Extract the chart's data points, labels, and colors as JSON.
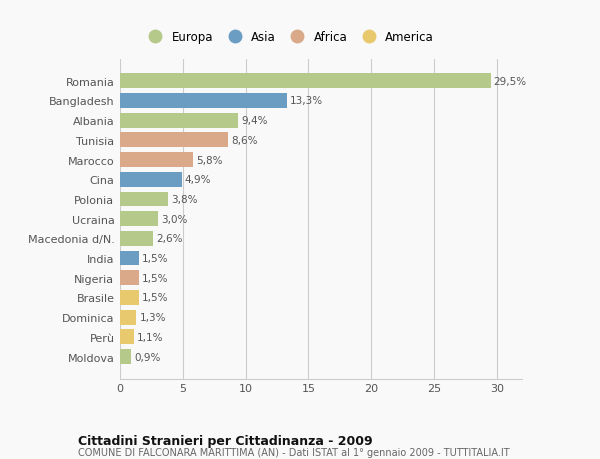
{
  "categories": [
    "Romania",
    "Bangladesh",
    "Albania",
    "Tunisia",
    "Marocco",
    "Cina",
    "Polonia",
    "Ucraina",
    "Macedonia d/N.",
    "India",
    "Nigeria",
    "Brasile",
    "Dominica",
    "Perù",
    "Moldova"
  ],
  "values": [
    29.5,
    13.3,
    9.4,
    8.6,
    5.8,
    4.9,
    3.8,
    3.0,
    2.6,
    1.5,
    1.5,
    1.5,
    1.3,
    1.1,
    0.9
  ],
  "labels": [
    "29,5%",
    "13,3%",
    "9,4%",
    "8,6%",
    "5,8%",
    "4,9%",
    "3,8%",
    "3,0%",
    "2,6%",
    "1,5%",
    "1,5%",
    "1,5%",
    "1,3%",
    "1,1%",
    "0,9%"
  ],
  "colors": [
    "#b5c98a",
    "#6b9dc2",
    "#b5c98a",
    "#d9a98a",
    "#d9a98a",
    "#6b9dc2",
    "#b5c98a",
    "#b5c98a",
    "#b5c98a",
    "#6b9dc2",
    "#d9a98a",
    "#e8c96e",
    "#e8c96e",
    "#e8c96e",
    "#b5c98a"
  ],
  "legend_labels": [
    "Europa",
    "Asia",
    "Africa",
    "America"
  ],
  "legend_colors": [
    "#b5c98a",
    "#6b9dc2",
    "#d9a98a",
    "#e8c96e"
  ],
  "title_main": "Cittadini Stranieri per Cittadinanza - 2009",
  "title_sub": "COMUNE DI FALCONARA MARITTIMA (AN) - Dati ISTAT al 1° gennaio 2009 - TUTTITALIA.IT",
  "xlim": [
    0,
    32
  ],
  "xticks": [
    0,
    5,
    10,
    15,
    20,
    25,
    30
  ],
  "background_color": "#f9f9f9",
  "grid_color": "#cccccc",
  "bar_height": 0.75
}
